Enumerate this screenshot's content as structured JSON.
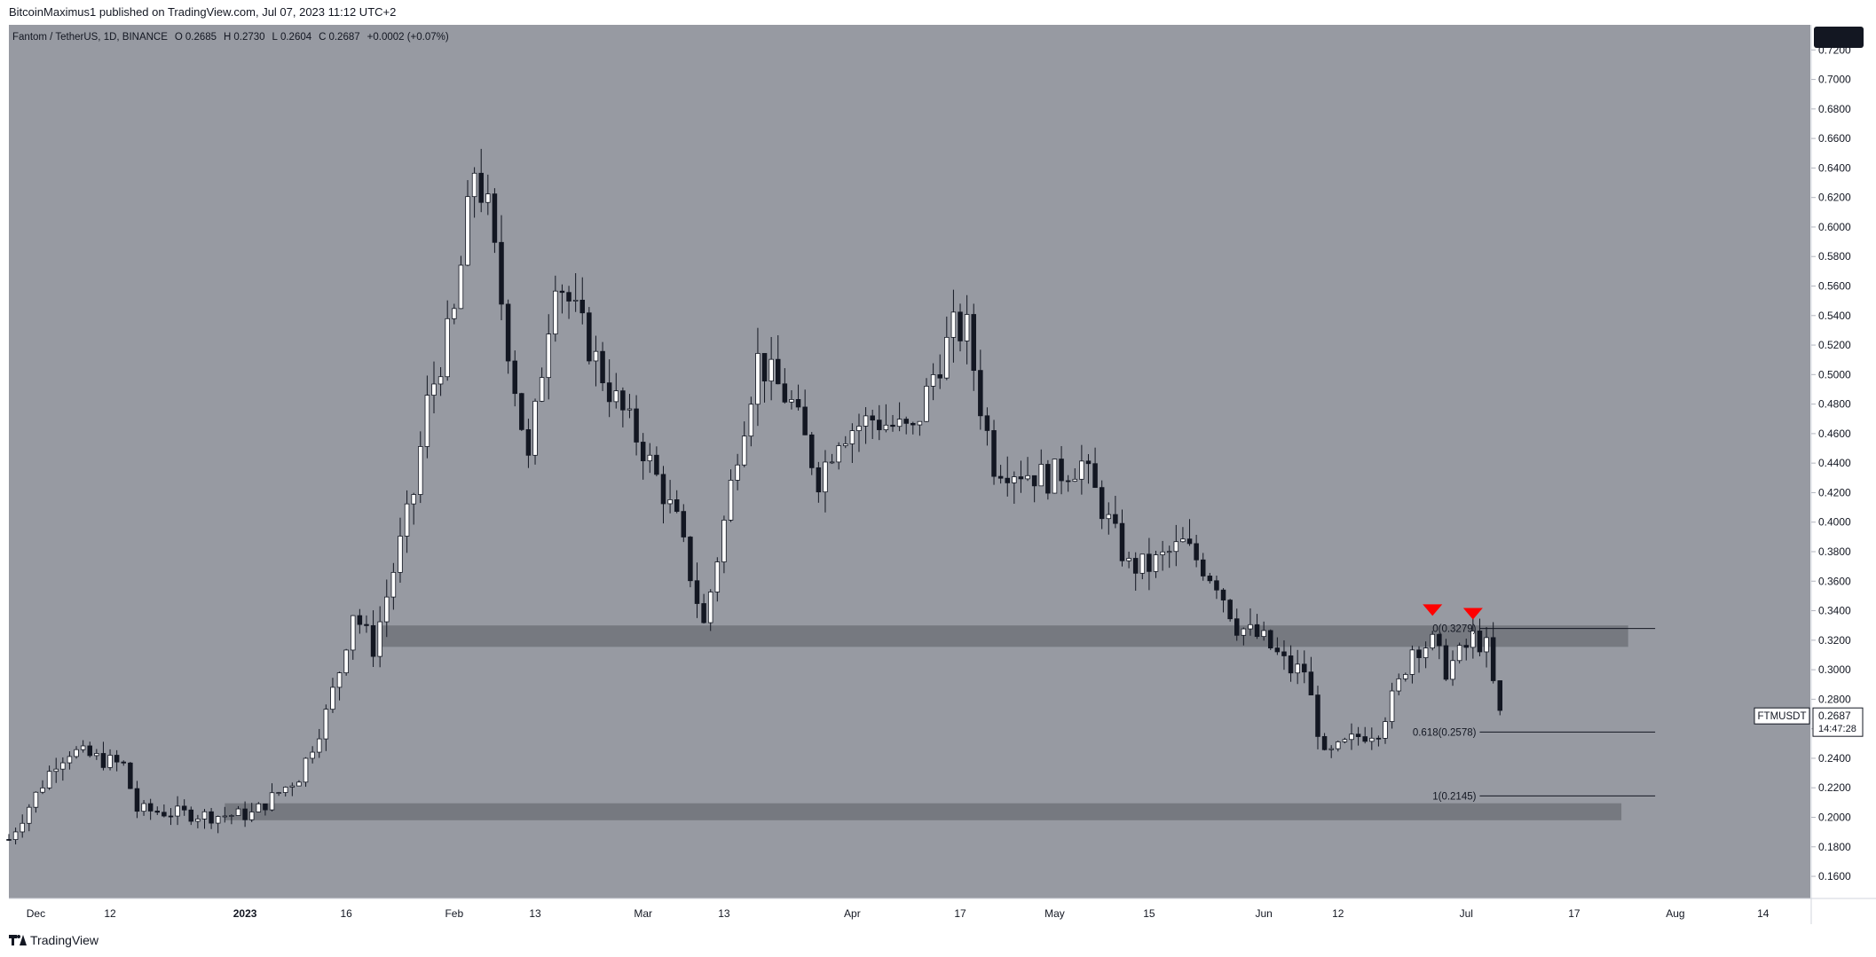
{
  "header": {
    "publisher": "BitcoinMaximus1 published on TradingView.com, Jul 07, 2023 11:12 UTC+2"
  },
  "footer": {
    "logo_text": "TradingView"
  },
  "legend": {
    "pair": "Fantom / TetherUS, 1D, BINANCE",
    "o_label": "O",
    "o_value": "0.2685",
    "h_label": "H",
    "h_value": "0.2730",
    "l_label": "L",
    "l_value": "0.2604",
    "c_label": "C",
    "c_value": "0.2687",
    "change": "+0.0002 (+0.07%)"
  },
  "chart_data": {
    "type": "candlestick",
    "symbol": "FTMUSDT",
    "last_price": "0.2687",
    "countdown": "14:47:28",
    "x_start": "2022-11-27",
    "x_end": "2023-08-21",
    "ylim": [
      0.145,
      0.737
    ],
    "y_ticks": [
      0.16,
      0.18,
      0.2,
      0.22,
      0.24,
      0.26,
      0.28,
      0.3,
      0.32,
      0.34,
      0.36,
      0.38,
      0.4,
      0.42,
      0.44,
      0.46,
      0.48,
      0.5,
      0.52,
      0.54,
      0.56,
      0.58,
      0.6,
      0.62,
      0.64,
      0.66,
      0.68,
      0.7,
      0.72
    ],
    "x_ticks": [
      {
        "date": "2022-12-01",
        "label": "Dec"
      },
      {
        "date": "2022-12-12",
        "label": "12"
      },
      {
        "date": "2023-01-01",
        "label": "2023"
      },
      {
        "date": "2023-01-16",
        "label": "16"
      },
      {
        "date": "2023-02-01",
        "label": "Feb"
      },
      {
        "date": "2023-02-13",
        "label": "13"
      },
      {
        "date": "2023-03-01",
        "label": "Mar"
      },
      {
        "date": "2023-03-13",
        "label": "13"
      },
      {
        "date": "2023-04-01",
        "label": "Apr"
      },
      {
        "date": "2023-04-17",
        "label": "17"
      },
      {
        "date": "2023-05-01",
        "label": "May"
      },
      {
        "date": "2023-05-15",
        "label": "15"
      },
      {
        "date": "2023-06-01",
        "label": "Jun"
      },
      {
        "date": "2023-06-12",
        "label": "12"
      },
      {
        "date": "2023-07-01",
        "label": "Jul"
      },
      {
        "date": "2023-07-17",
        "label": "17"
      },
      {
        "date": "2023-08-01",
        "label": "Aug"
      },
      {
        "date": "2023-08-14",
        "label": "14"
      }
    ],
    "grid": false,
    "closes": [
      {
        "date": "2022-11-27",
        "close": 0.185
      },
      {
        "date": "2022-12-04",
        "close": 0.238
      },
      {
        "date": "2022-12-06",
        "close": 0.245
      },
      {
        "date": "2022-12-14",
        "close": 0.235
      },
      {
        "date": "2022-12-16",
        "close": 0.205
      },
      {
        "date": "2022-12-27",
        "close": 0.201
      },
      {
        "date": "2023-01-02",
        "close": 0.202
      },
      {
        "date": "2023-01-09",
        "close": 0.228
      },
      {
        "date": "2023-01-13",
        "close": 0.27
      },
      {
        "date": "2023-01-15",
        "close": 0.3
      },
      {
        "date": "2023-01-17",
        "close": 0.34
      },
      {
        "date": "2023-01-20",
        "close": 0.315
      },
      {
        "date": "2023-01-22",
        "close": 0.35
      },
      {
        "date": "2023-01-26",
        "close": 0.42
      },
      {
        "date": "2023-01-28",
        "close": 0.48
      },
      {
        "date": "2023-02-01",
        "close": 0.54
      },
      {
        "date": "2023-02-04",
        "close": 0.64
      },
      {
        "date": "2023-02-06",
        "close": 0.61
      },
      {
        "date": "2023-02-09",
        "close": 0.52
      },
      {
        "date": "2023-02-12",
        "close": 0.44
      },
      {
        "date": "2023-02-16",
        "close": 0.57
      },
      {
        "date": "2023-02-20",
        "close": 0.53
      },
      {
        "date": "2023-02-24",
        "close": 0.49
      },
      {
        "date": "2023-03-01",
        "close": 0.45
      },
      {
        "date": "2023-03-06",
        "close": 0.4
      },
      {
        "date": "2023-03-10",
        "close": 0.33
      },
      {
        "date": "2023-03-13",
        "close": 0.4
      },
      {
        "date": "2023-03-15",
        "close": 0.45
      },
      {
        "date": "2023-03-18",
        "close": 0.51
      },
      {
        "date": "2023-03-23",
        "close": 0.48
      },
      {
        "date": "2023-03-27",
        "close": 0.43
      },
      {
        "date": "2023-03-30",
        "close": 0.46
      },
      {
        "date": "2023-04-04",
        "close": 0.47
      },
      {
        "date": "2023-04-10",
        "close": 0.46
      },
      {
        "date": "2023-04-13",
        "close": 0.5
      },
      {
        "date": "2023-04-16",
        "close": 0.53
      },
      {
        "date": "2023-04-18",
        "close": 0.53
      },
      {
        "date": "2023-04-20",
        "close": 0.48
      },
      {
        "date": "2023-04-22",
        "close": 0.44
      },
      {
        "date": "2023-04-30",
        "close": 0.43
      },
      {
        "date": "2023-05-05",
        "close": 0.44
      },
      {
        "date": "2023-05-08",
        "close": 0.41
      },
      {
        "date": "2023-05-12",
        "close": 0.37
      },
      {
        "date": "2023-05-15",
        "close": 0.37
      },
      {
        "date": "2023-05-20",
        "close": 0.385
      },
      {
        "date": "2023-05-25",
        "close": 0.36
      },
      {
        "date": "2023-05-28",
        "close": 0.33
      },
      {
        "date": "2023-06-01",
        "close": 0.32
      },
      {
        "date": "2023-06-05",
        "close": 0.3
      },
      {
        "date": "2023-06-07",
        "close": 0.3
      },
      {
        "date": "2023-06-10",
        "close": 0.24
      },
      {
        "date": "2023-06-15",
        "close": 0.255
      },
      {
        "date": "2023-06-18",
        "close": 0.26
      },
      {
        "date": "2023-06-21",
        "close": 0.29
      },
      {
        "date": "2023-06-23",
        "close": 0.315
      },
      {
        "date": "2023-06-26",
        "close": 0.318
      },
      {
        "date": "2023-06-28",
        "close": 0.3
      },
      {
        "date": "2023-07-01",
        "close": 0.315
      },
      {
        "date": "2023-07-02",
        "close": 0.322
      },
      {
        "date": "2023-07-04",
        "close": 0.315
      },
      {
        "date": "2023-07-05",
        "close": 0.29
      },
      {
        "date": "2023-07-06",
        "close": 0.269
      }
    ],
    "zones": [
      {
        "date_start": "2023-01-21",
        "date_end": "2023-07-25",
        "low": 0.3155,
        "high": 0.33
      },
      {
        "date_start": "2022-12-29",
        "date_end": "2023-07-24",
        "low": 0.198,
        "high": 0.2095
      }
    ],
    "fib_levels": [
      {
        "value": 0.3279,
        "label": "0(0.3279)",
        "date_start": "2023-07-03",
        "date_end": "2023-07-29"
      },
      {
        "value": 0.2578,
        "label": "0.618(0.2578)",
        "date_start": "2023-07-03",
        "date_end": "2023-07-29"
      },
      {
        "value": 0.2145,
        "label": "1(0.2145)",
        "date_start": "2023-07-03",
        "date_end": "2023-07-29"
      }
    ],
    "markers": [
      {
        "date": "2023-06-26",
        "value": 0.3395,
        "shape": "down-triangle",
        "color": "#ff0000"
      },
      {
        "date": "2023-07-02",
        "value": 0.337,
        "shape": "down-triangle",
        "color": "#ff0000"
      }
    ],
    "colors": {
      "background": "#979aa2",
      "up_body": "#ffffff",
      "down_body": "#131722",
      "wick": "#131722",
      "zone": "#6e7178",
      "marker": "#ff0000"
    }
  }
}
